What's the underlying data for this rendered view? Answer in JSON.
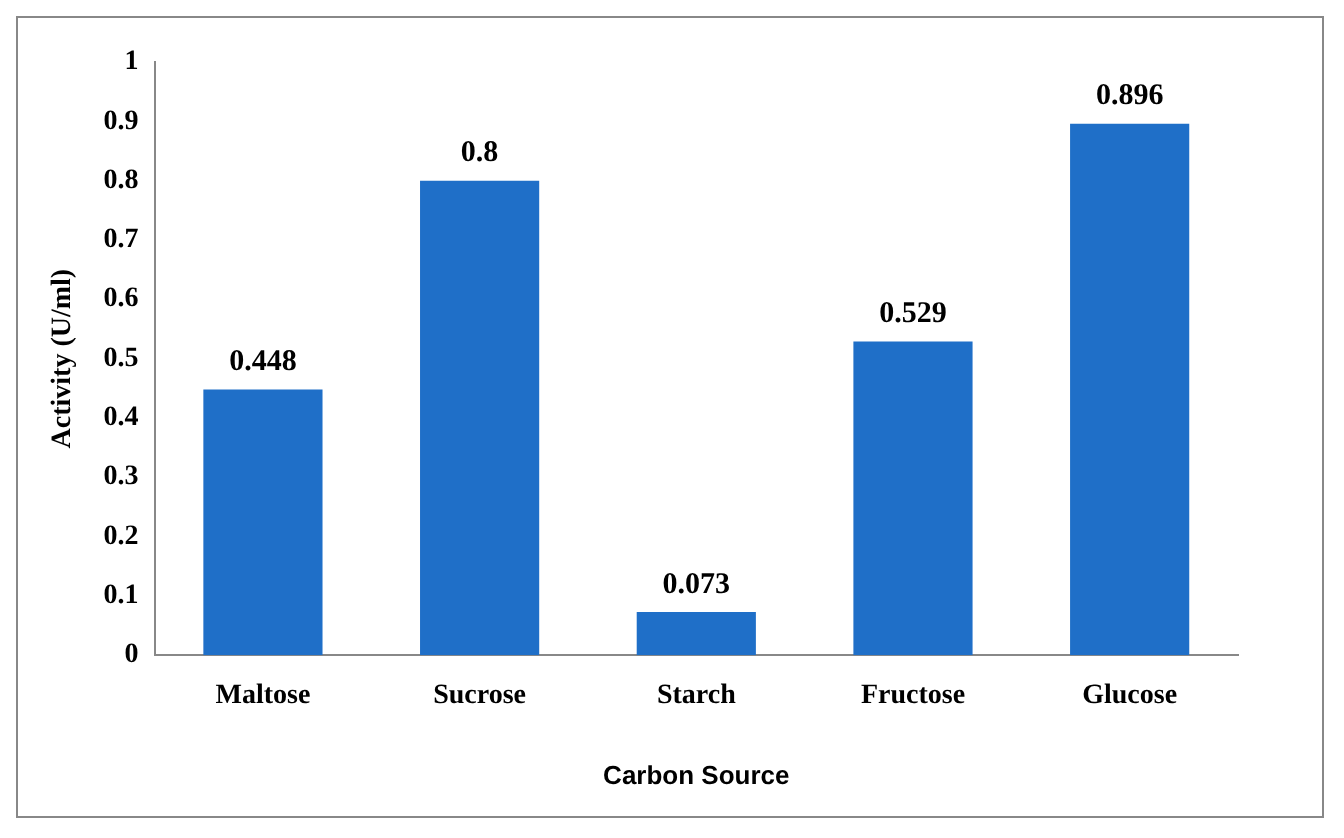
{
  "chart_data": {
    "type": "bar",
    "xlabel": "Carbon Source",
    "ylabel": "Activity (U/ml)",
    "categories": [
      "Maltose",
      "Sucrose",
      "Starch",
      "Fructose",
      "Glucose"
    ],
    "values": [
      0.448,
      0.8,
      0.073,
      0.529,
      0.896
    ],
    "color": "#1f6fc8",
    "ylim": [
      0,
      1
    ],
    "yticks": [
      0,
      0.1,
      0.2,
      0.3,
      0.4,
      0.5,
      0.6,
      0.7,
      0.8,
      0.9,
      1
    ],
    "data_labels": true,
    "grid": false,
    "legend": false
  }
}
